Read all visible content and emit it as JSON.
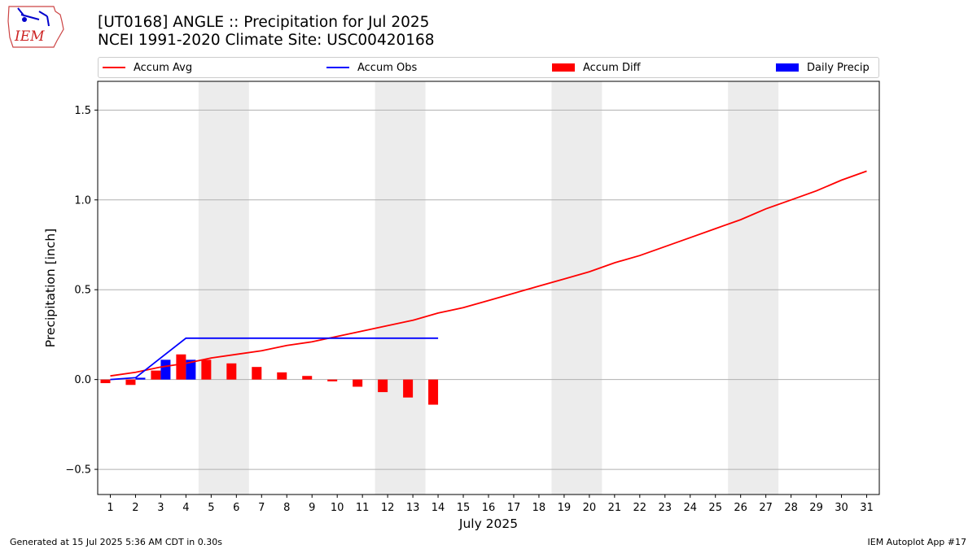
{
  "header": {
    "title_line1": "[UT0168] ANGLE :: Precipitation for Jul 2025",
    "title_line2": "NCEI 1991-2020 Climate Site: USC00420168",
    "logo_text": "IEM"
  },
  "legend": {
    "items": [
      {
        "label": "Accum Avg",
        "kind": "line",
        "color": "#ff0000"
      },
      {
        "label": "Accum Obs",
        "kind": "line",
        "color": "#0000ff"
      },
      {
        "label": "Accum Diff",
        "kind": "patch",
        "color": "#ff0000"
      },
      {
        "label": "Daily Precip",
        "kind": "patch",
        "color": "#0000ff"
      }
    ]
  },
  "footer": {
    "left": "Generated at 15 Jul 2025 5:36 AM CDT in 0.30s",
    "right": "IEM Autoplot App #17"
  },
  "chart_data": {
    "type": "line",
    "xlabel": "July 2025",
    "ylabel": "Precipitation [inch]",
    "x": [
      1,
      2,
      3,
      4,
      5,
      6,
      7,
      8,
      9,
      10,
      11,
      12,
      13,
      14,
      15,
      16,
      17,
      18,
      19,
      20,
      21,
      22,
      23,
      24,
      25,
      26,
      27,
      28,
      29,
      30,
      31
    ],
    "xlim": [
      0.5,
      31.5
    ],
    "ylim": [
      -0.64,
      1.66
    ],
    "yticks": [
      -0.5,
      0.0,
      0.5,
      1.0,
      1.5
    ],
    "ytick_labels": [
      "−0.5",
      "0.0",
      "0.5",
      "1.0",
      "1.5"
    ],
    "grid": "horizontal",
    "legend_position": "top",
    "weekend_shading": [
      [
        4.5,
        6.5
      ],
      [
        11.5,
        13.5
      ],
      [
        18.5,
        20.5
      ],
      [
        25.5,
        27.5
      ]
    ],
    "series": [
      {
        "name": "Accum Avg",
        "kind": "line",
        "color": "#ff0000",
        "x": [
          1,
          2,
          3,
          4,
          5,
          6,
          7,
          8,
          9,
          10,
          11,
          12,
          13,
          14,
          15,
          16,
          17,
          18,
          19,
          20,
          21,
          22,
          23,
          24,
          25,
          26,
          27,
          28,
          29,
          30,
          31
        ],
        "values": [
          0.02,
          0.04,
          0.07,
          0.09,
          0.12,
          0.14,
          0.16,
          0.19,
          0.21,
          0.24,
          0.27,
          0.3,
          0.33,
          0.37,
          0.4,
          0.44,
          0.48,
          0.52,
          0.56,
          0.6,
          0.65,
          0.69,
          0.74,
          0.79,
          0.84,
          0.89,
          0.95,
          1.0,
          1.05,
          1.11,
          1.16
        ]
      },
      {
        "name": "Accum Obs",
        "kind": "line",
        "color": "#0000ff",
        "x": [
          1,
          2,
          3,
          4,
          5,
          6,
          7,
          8,
          9,
          10,
          11,
          12,
          13,
          14
        ],
        "values": [
          0.0,
          0.01,
          0.12,
          0.23,
          0.23,
          0.23,
          0.23,
          0.23,
          0.23,
          0.23,
          0.23,
          0.23,
          0.23,
          0.23
        ]
      },
      {
        "name": "Accum Diff",
        "kind": "bar",
        "color": "#ff0000",
        "x": [
          1,
          2,
          3,
          4,
          5,
          6,
          7,
          8,
          9,
          10,
          11,
          12,
          13,
          14
        ],
        "values": [
          -0.02,
          -0.03,
          0.05,
          0.14,
          0.11,
          0.09,
          0.07,
          0.04,
          0.02,
          -0.01,
          -0.04,
          -0.07,
          -0.1,
          -0.14
        ]
      },
      {
        "name": "Daily Precip",
        "kind": "bar",
        "color": "#0000ff",
        "x": [
          1,
          2,
          3,
          4,
          5,
          6,
          7,
          8,
          9,
          10,
          11,
          12,
          13,
          14
        ],
        "values": [
          0.0,
          0.01,
          0.11,
          0.11,
          0.0,
          0.0,
          0.0,
          0.0,
          0.0,
          0.0,
          0.0,
          0.0,
          0.0,
          0.0
        ]
      }
    ]
  }
}
